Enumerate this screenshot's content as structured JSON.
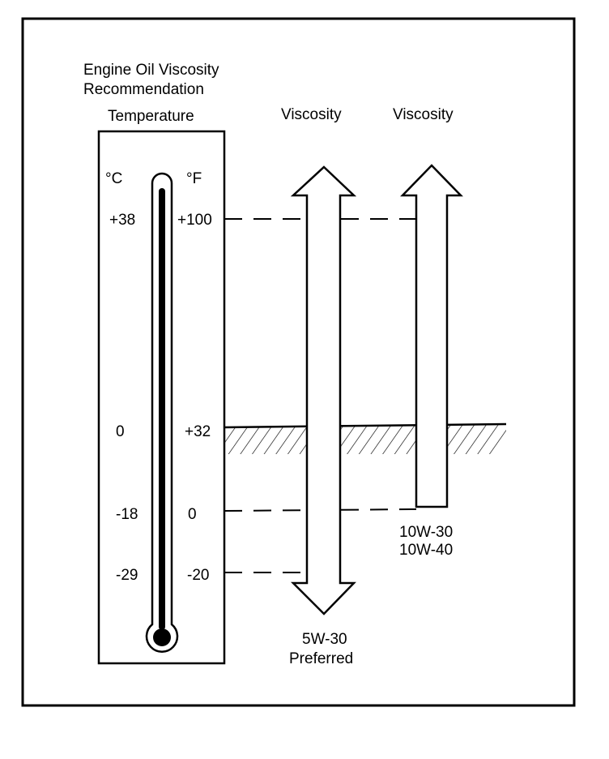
{
  "title_line1": "Engine Oil Viscosity",
  "title_line2": "Recommendation",
  "temperature_heading": "Temperature",
  "viscosity_heading_1": "Viscosity",
  "viscosity_heading_2": "Viscosity",
  "celsius_label": "°C",
  "fahrenheit_label": "°F",
  "celsius_ticks": [
    "+38",
    "0",
    "-18",
    "-29"
  ],
  "fahrenheit_ticks": [
    "+100",
    "+32",
    "0",
    "-20"
  ],
  "oil_1_grade": "5W-30",
  "oil_1_note": "Preferred",
  "oil_2_grade_a": "10W-30",
  "oil_2_grade_b": "10W-40"
}
